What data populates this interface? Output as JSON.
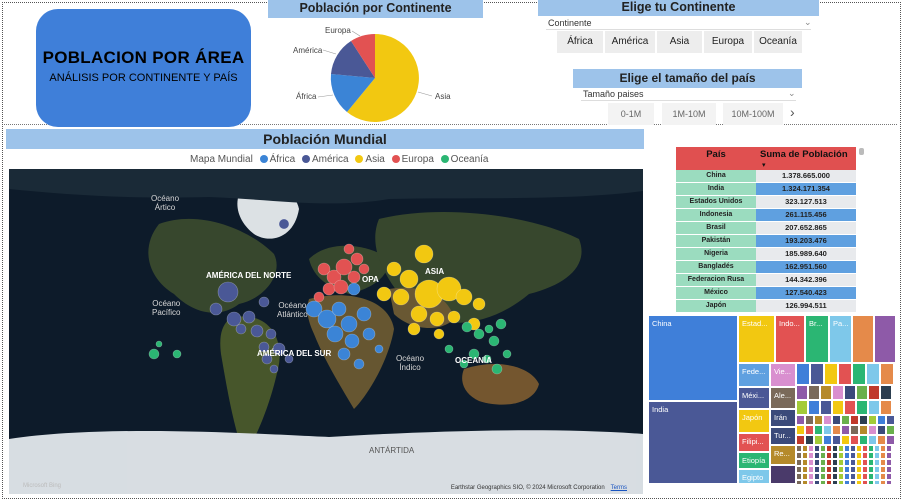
{
  "title_card": {
    "title": "POBLACION POR ÁREA",
    "subtitle": "ANÁLISIS POR CONTINENTE Y PAÍS"
  },
  "pie": {
    "banner": "Población por Continente",
    "labels": {
      "europa": "Europa",
      "america": "América",
      "africa": "África",
      "asia": "Asia"
    },
    "colors": {
      "asia": "#f2c811",
      "africa": "#3b84d6",
      "america": "#4a5896",
      "europa": "#e25252"
    }
  },
  "continent_slicer": {
    "banner": "Elige tu Continente",
    "label": "Continente",
    "options": [
      "África",
      "América",
      "Asia",
      "Europa",
      "Oceanía"
    ]
  },
  "size_slicer": {
    "banner": "Elige el tamaño del país",
    "label": "Tamaño paises",
    "options": [
      "0-1M",
      "1M-10M",
      "10M-100M"
    ]
  },
  "world_map": {
    "banner": "Población Mundial",
    "legend_title": "Mapa Mundial",
    "legend": [
      {
        "name": "África",
        "color": "#3b84d6"
      },
      {
        "name": "América",
        "color": "#4a5896"
      },
      {
        "name": "Asia",
        "color": "#f2c811"
      },
      {
        "name": "Europa",
        "color": "#e25252"
      },
      {
        "name": "Oceanía",
        "color": "#2bb673"
      }
    ],
    "labels": {
      "oceano_artico_1": "Océano",
      "oceano_artico_2": "Ártico",
      "america_norte": "AMÉRICA DEL NORTE",
      "europa": "OPA",
      "asia": "ASIA",
      "oceano_pacifico_1": "Océano",
      "oceano_pacifico_2": "Pacífico",
      "oceano_atlantico_1": "Océano",
      "oceano_atlantico_2": "Atlántico",
      "america_sur": "AMÉRICA DEL SUR",
      "oceano_indico_1": "Océano",
      "oceano_indico_2": "Índico",
      "oceania": "OCEANÍA",
      "antartida": "ANTÁRTIDA"
    },
    "attribution": "Earthstar Geographics SIO, © 2024 Microsoft Corporation",
    "terms": "Terms",
    "logo_text": "Microsoft Bing"
  },
  "table": {
    "headers": {
      "country": "País",
      "population": "Suma de Población"
    },
    "rows": [
      {
        "country": "China",
        "population": "1.378.665.000"
      },
      {
        "country": "India",
        "population": "1.324.171.354"
      },
      {
        "country": "Estados Unidos",
        "population": "323.127.513"
      },
      {
        "country": "Indonesia",
        "population": "261.115.456"
      },
      {
        "country": "Brasil",
        "population": "207.652.865"
      },
      {
        "country": "Pakistán",
        "population": "193.203.476"
      },
      {
        "country": "Nigeria",
        "population": "185.989.640"
      },
      {
        "country": "Bangladés",
        "population": "162.951.560"
      },
      {
        "country": "Federacion Rusa",
        "population": "144.342.396"
      },
      {
        "country": "México",
        "population": "127.540.423"
      },
      {
        "country": "Japón",
        "population": "126.994.511"
      }
    ]
  },
  "treemap": {
    "tiles": {
      "china": "China",
      "india": "India",
      "estados_unidos": "Estad...",
      "indonesia": "Indo...",
      "brasil": "Br...",
      "pakistan": "Pa...",
      "federacion": "Fede...",
      "mexico": "Méxi...",
      "japon": "Japón",
      "filipinas": "Filipi...",
      "etiopia": "Etiopía",
      "egipto": "Egipto",
      "vietnam": "Vie...",
      "alemania": "Ale...",
      "iran": "Irán",
      "turquia": "Tur...",
      "rd": "Re..."
    }
  }
}
